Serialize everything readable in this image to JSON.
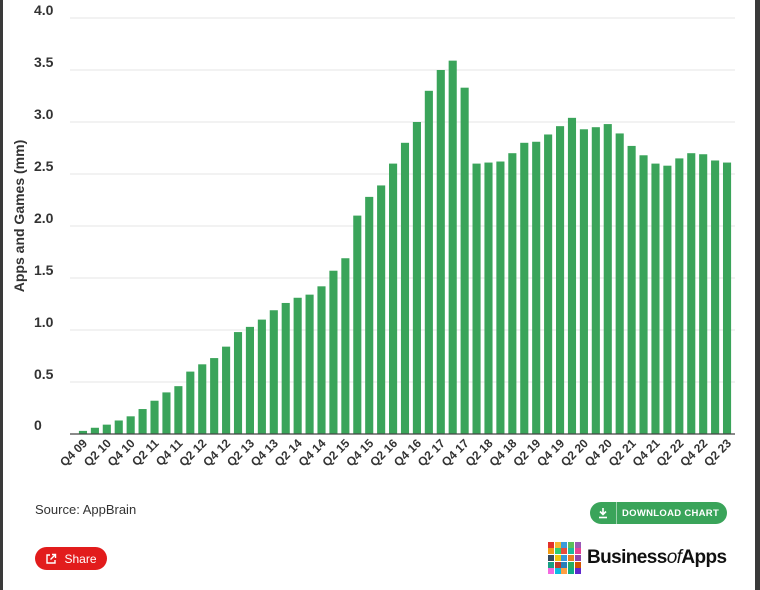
{
  "chart_data": {
    "type": "bar",
    "ylabel": "Apps and Games (mm)",
    "xlabel": "",
    "title": "",
    "ylim": [
      0,
      4.0
    ],
    "yticks": [
      "0",
      "0.5",
      "1.0",
      "1.5",
      "2.0",
      "2.5",
      "3.0",
      "3.5",
      "4.0"
    ],
    "grid": true,
    "bar_color": "#3aa45a",
    "categories": [
      "Q4 09",
      "Q1 10",
      "Q2 10",
      "Q3 10",
      "Q4 10",
      "Q1 11",
      "Q2 11",
      "Q3 11",
      "Q4 11",
      "Q1 12",
      "Q2 12",
      "Q3 12",
      "Q4 12",
      "Q1 13",
      "Q2 13",
      "Q3 13",
      "Q4 13",
      "Q1 14",
      "Q2 14",
      "Q3 14",
      "Q4 14",
      "Q1 15",
      "Q2 15",
      "Q3 15",
      "Q4 15",
      "Q1 16",
      "Q2 16",
      "Q3 16",
      "Q4 16",
      "Q1 17",
      "Q2 17",
      "Q3 17",
      "Q4 17",
      "Q1 18",
      "Q2 18",
      "Q3 18",
      "Q4 18",
      "Q1 19",
      "Q2 19",
      "Q3 19",
      "Q4 19",
      "Q1 20",
      "Q2 20",
      "Q3 20",
      "Q4 20",
      "Q1 21",
      "Q2 21",
      "Q3 21",
      "Q4 21",
      "Q1 22",
      "Q2 22",
      "Q3 22",
      "Q4 22",
      "Q1 23",
      "Q2 23"
    ],
    "x_tick_labels": [
      "Q4 09",
      "Q2 10",
      "Q4 10",
      "Q2 11",
      "Q4 11",
      "Q2 12",
      "Q4 12",
      "Q2 13",
      "Q4 13",
      "Q2 14",
      "Q4 14",
      "Q2 15",
      "Q4 15",
      "Q2 16",
      "Q4 16",
      "Q2 17",
      "Q4 17",
      "Q2 18",
      "Q4 18",
      "Q2 19",
      "Q4 19",
      "Q2 20",
      "Q4 20",
      "Q2 21",
      "Q4 21",
      "Q2 22",
      "Q4 22",
      "Q2 23"
    ],
    "values": [
      0.03,
      0.06,
      0.09,
      0.13,
      0.17,
      0.24,
      0.32,
      0.4,
      0.46,
      0.6,
      0.67,
      0.73,
      0.84,
      0.98,
      1.03,
      1.1,
      1.19,
      1.26,
      1.31,
      1.34,
      1.42,
      1.57,
      1.69,
      2.1,
      2.28,
      2.39,
      2.6,
      2.8,
      3.0,
      3.3,
      3.5,
      3.59,
      3.33,
      2.6,
      2.61,
      2.62,
      2.7,
      2.8,
      2.81,
      2.88,
      2.96,
      3.04,
      2.93,
      2.95,
      2.98,
      2.89,
      2.77,
      2.68,
      2.6,
      2.58,
      2.65,
      2.7,
      2.69,
      2.63,
      2.61
    ]
  },
  "footer": {
    "source": "Source: AppBrain",
    "download_label": "DOWNLOAD CHART",
    "share_label": "Share"
  },
  "brand": {
    "name_part1": "Business",
    "name_part2": "of",
    "name_part3": "Apps",
    "logo_colors": [
      "#e2312b",
      "#f7b731",
      "#3a9bd9",
      "#5bbf5b",
      "#9b59b6",
      "#f39c12",
      "#2ecc71",
      "#e74c3c",
      "#1abc9c",
      "#e84393",
      "#34495e",
      "#f1c40f",
      "#3498db",
      "#e67e22",
      "#8e44ad",
      "#16a085",
      "#c0392b",
      "#2980b9",
      "#27ae60",
      "#d35400",
      "#f368e0",
      "#0abde3",
      "#ff9f43",
      "#10ac84",
      "#5f27cd"
    ]
  }
}
